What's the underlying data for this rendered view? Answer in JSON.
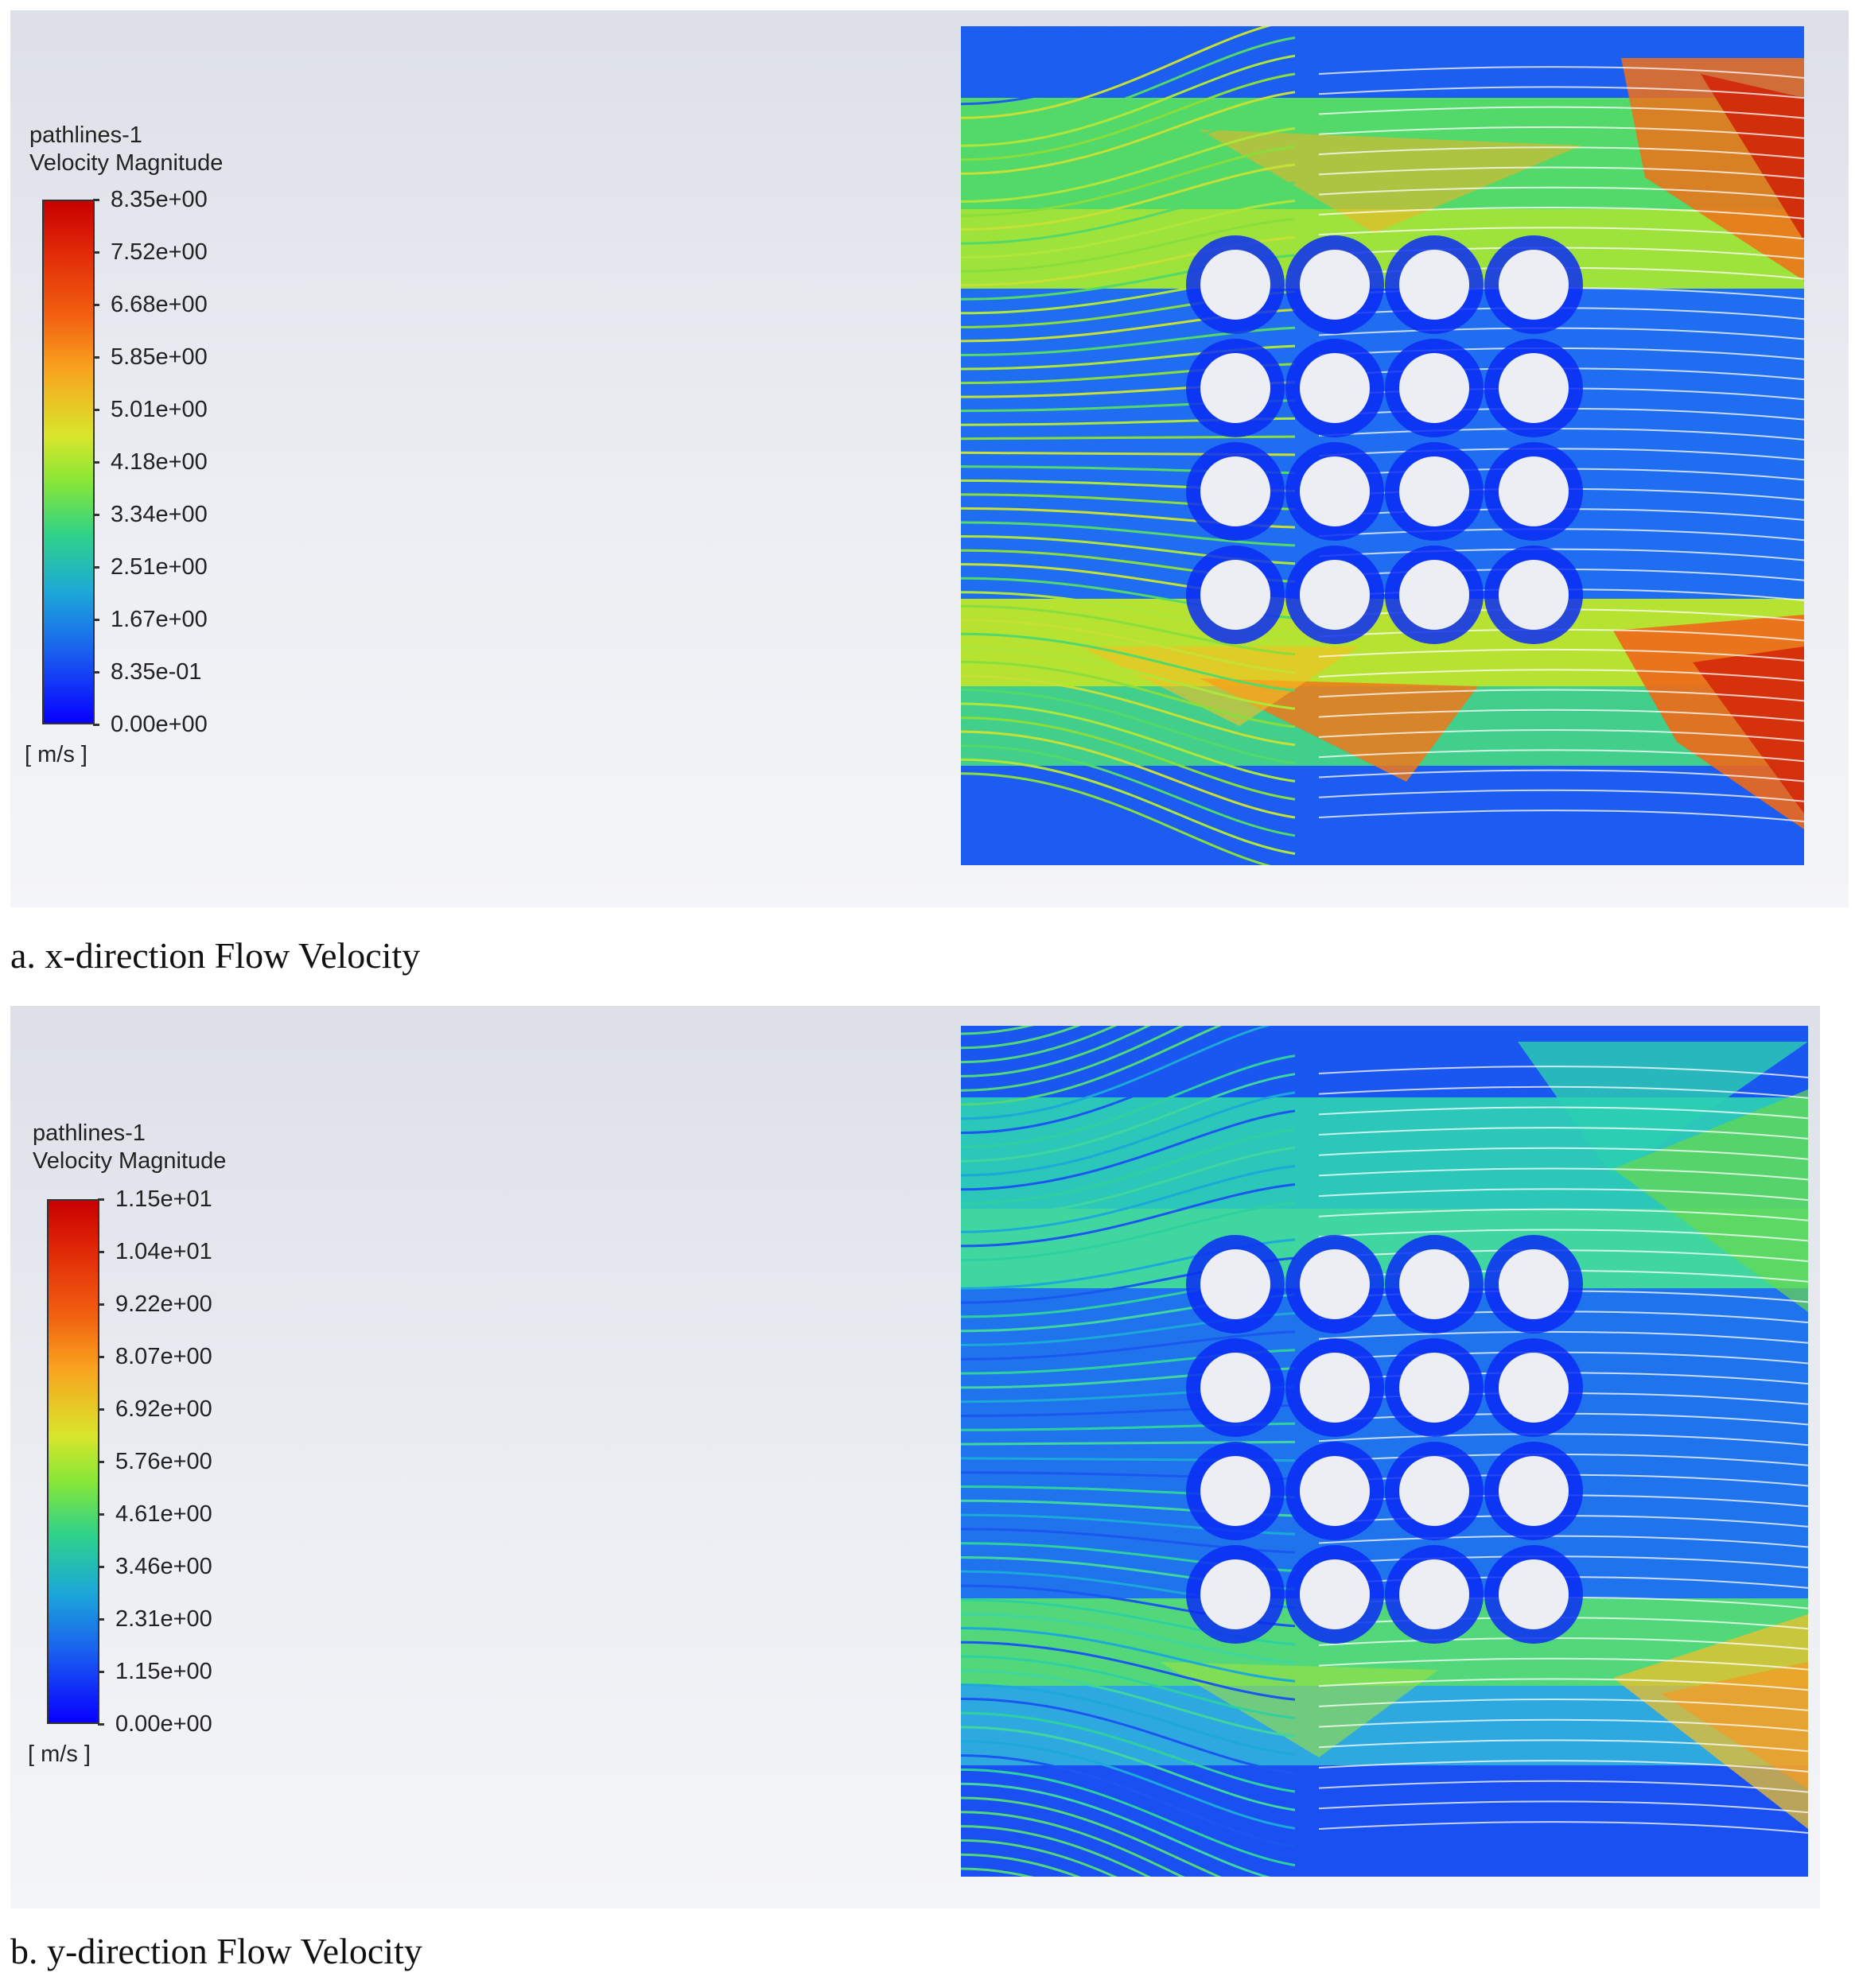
{
  "figures": [
    {
      "id": "a",
      "legend": {
        "title_line1": "pathlines-1",
        "title_line2": "Velocity Magnitude",
        "ticks": [
          "8.35e+00",
          "7.52e+00",
          "6.68e+00",
          "5.85e+00",
          "5.01e+00",
          "4.18e+00",
          "3.34e+00",
          "2.51e+00",
          "1.67e+00",
          "8.35e-01",
          "0.00e+00"
        ],
        "unit": "[ m/s ]"
      },
      "caption": "a. x-direction Flow Velocity"
    },
    {
      "id": "b",
      "legend": {
        "title_line1": "pathlines-1",
        "title_line2": "Velocity Magnitude",
        "ticks": [
          "1.15e+01",
          "1.04e+01",
          "9.22e+00",
          "8.07e+00",
          "6.92e+00",
          "5.76e+00",
          "4.61e+00",
          "3.46e+00",
          "2.31e+00",
          "1.15e+00",
          "0.00e+00"
        ],
        "unit": "[ m/s ]"
      },
      "caption": "b. y-direction Flow Velocity"
    }
  ],
  "colors": {
    "panel_top": "#dde0e8",
    "panel_bottom": "#f4f5f8",
    "cylinder": "#eceef3",
    "streamline": "#ffffff",
    "scale_max": "#c80000",
    "scale_min": "#0800ff"
  }
}
